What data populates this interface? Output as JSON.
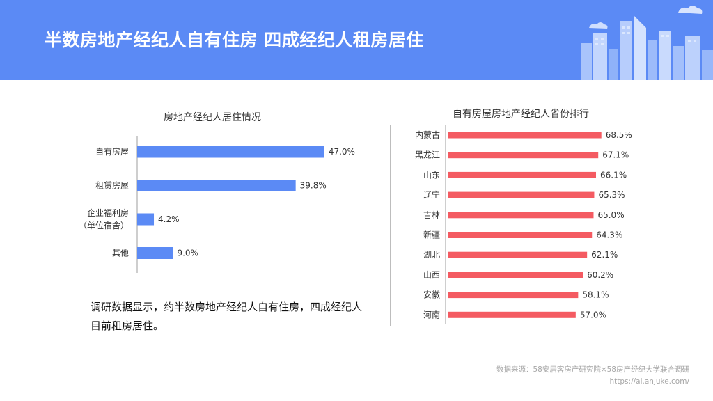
{
  "header": {
    "title": "半数房地产经纪人自有住房 四成经纪人租房居住",
    "background_color": "#5b8af5"
  },
  "summary": {
    "text": "调研数据显示，约半数房地产经纪人自有住房，四成经纪人目前租房居住。"
  },
  "source": {
    "line1": "数据来源：58安居客房产研究院×58房产经纪大学联合调研",
    "line2": "https://ai.anjuke.com/"
  },
  "chart_data": [
    {
      "type": "bar",
      "orientation": "horizontal",
      "title": "房地产经纪人居住情况",
      "categories": [
        "自有房屋",
        "租赁房屋",
        "企业福利房\n（单位宿舍）",
        "其他"
      ],
      "category_lines": [
        [
          "自有房屋"
        ],
        [
          "租赁房屋"
        ],
        [
          "企业福利房",
          "（单位宿舍）"
        ],
        [
          "其他"
        ]
      ],
      "values": [
        47.0,
        39.8,
        4.2,
        9.0
      ],
      "value_labels": [
        "47.0%",
        "39.8%",
        "4.2%",
        "9.0%"
      ],
      "unit": "%",
      "color": "#5b8af5",
      "xlim": [
        0,
        50
      ],
      "grid": false,
      "xlabel": "",
      "ylabel": ""
    },
    {
      "type": "bar",
      "orientation": "horizontal",
      "title": "自有房屋房地产经纪人省份排行",
      "categories": [
        "内蒙古",
        "黑龙江",
        "山东",
        "辽宁",
        "吉林",
        "新疆",
        "湖北",
        "山西",
        "安徽",
        "河南"
      ],
      "values": [
        68.5,
        67.1,
        66.1,
        65.3,
        65.0,
        64.3,
        62.1,
        60.2,
        58.1,
        57.0
      ],
      "value_labels": [
        "68.5%",
        "67.1%",
        "66.1%",
        "65.3%",
        "65.0%",
        "64.3%",
        "62.1%",
        "60.2%",
        "58.1%",
        "57.0%"
      ],
      "unit": "%",
      "color": "#f45b62",
      "xlim": [
        0,
        75
      ],
      "grid": false,
      "xlabel": "",
      "ylabel": ""
    }
  ]
}
